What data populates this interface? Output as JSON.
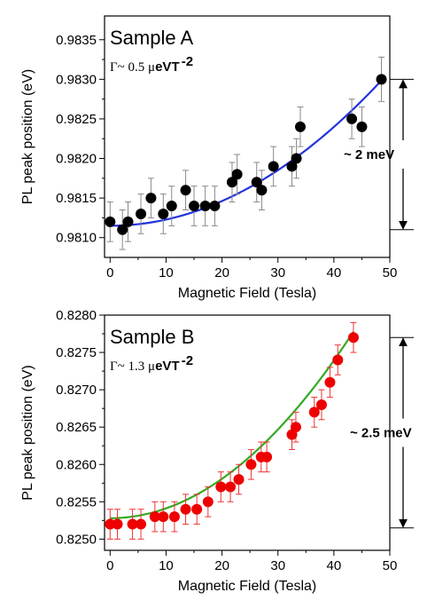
{
  "chart_data": [
    {
      "type": "scatter",
      "panel_label": "Sample A",
      "gamma_prefix": "Γ~ 0.5 μ",
      "gamma_unit": "eVT",
      "gamma_exp": "-2",
      "xlabel": "Magnetic Field (Tesla)",
      "ylabel": "PL peak position (eV)",
      "xlim": [
        -1,
        50
      ],
      "ylim": [
        0.98075,
        0.9838
      ],
      "x_ticks": [
        "0",
        "10",
        "20",
        "30",
        "40",
        "50"
      ],
      "x_tick_values": [
        0,
        10,
        20,
        30,
        40,
        50
      ],
      "y_ticks": [
        "0.9810",
        "0.9815",
        "0.9820",
        "0.9825",
        "0.9830",
        "0.9835"
      ],
      "y_tick_values": [
        0.981,
        0.9815,
        0.982,
        0.9825,
        0.983,
        0.9835
      ],
      "marker_color": "#000000",
      "errorbar_color": "#888888",
      "fit_color": "#2233dd",
      "fit": {
        "a": 0.98115,
        "c": 7.8e-07
      },
      "annotation": "~ 2 meV",
      "annotation_range": [
        0.9811,
        0.983
      ],
      "x": [
        0,
        2.2,
        3.2,
        5.5,
        7.3,
        9.5,
        11,
        13.5,
        15,
        17,
        18.7,
        21.8,
        22.7,
        26.2,
        27.1,
        29.2,
        32.5,
        33.3,
        34,
        43.2,
        45,
        48.5
      ],
      "y": [
        0.9812,
        0.9811,
        0.9812,
        0.9813,
        0.9815,
        0.9813,
        0.9814,
        0.9816,
        0.9814,
        0.9814,
        0.9814,
        0.9817,
        0.9818,
        0.9817,
        0.9816,
        0.9819,
        0.9819,
        0.982,
        0.9824,
        0.9825,
        0.9824,
        0.983
      ],
      "yerr": [
        0.00025,
        0.00025,
        0.00025,
        0.00025,
        0.00025,
        0.00025,
        0.00025,
        0.00025,
        0.00025,
        0.00025,
        0.00025,
        0.00025,
        0.00025,
        0.00025,
        0.00025,
        0.00025,
        0.00025,
        0.00025,
        0.00025,
        0.00025,
        0.00025,
        0.00028
      ]
    },
    {
      "type": "scatter",
      "panel_label": "Sample B",
      "gamma_prefix": "Γ~ 1.3 μ",
      "gamma_unit": "eVT",
      "gamma_exp": "-2",
      "xlabel": "Magnetic Field (Tesla)",
      "ylabel": "PL peak position (eV)",
      "xlim": [
        -1,
        50
      ],
      "ylim": [
        0.82485,
        0.828
      ],
      "x_ticks": [
        "0",
        "10",
        "20",
        "30",
        "40",
        "50"
      ],
      "x_tick_values": [
        0,
        10,
        20,
        30,
        40,
        50
      ],
      "y_ticks": [
        "0.8250",
        "0.8255",
        "0.8260",
        "0.8265",
        "0.8270",
        "0.8275",
        "0.8280"
      ],
      "y_tick_values": [
        0.825,
        0.8255,
        0.826,
        0.8265,
        0.827,
        0.8275,
        0.828
      ],
      "marker_color": "#ee0000",
      "errorbar_color": "#ee3333",
      "fit_color": "#33aa22",
      "fit": {
        "a": 0.82528,
        "c": 1.32e-06
      },
      "annotation": "~ 2.5 meV",
      "annotation_range": [
        0.82515,
        0.8277
      ],
      "x": [
        0,
        1.3,
        4,
        5.5,
        8,
        9.5,
        11.5,
        13.5,
        15.5,
        17.5,
        19.8,
        21.5,
        23,
        25.2,
        27,
        28,
        32.5,
        33.2,
        36.5,
        37.8,
        39.3,
        40.7,
        43.5
      ],
      "y": [
        0.8252,
        0.8252,
        0.8252,
        0.8252,
        0.8253,
        0.8253,
        0.8253,
        0.8254,
        0.8254,
        0.8255,
        0.8257,
        0.8257,
        0.8258,
        0.826,
        0.8261,
        0.8261,
        0.8264,
        0.8265,
        0.8267,
        0.8268,
        0.8271,
        0.8274,
        0.8277
      ],
      "yerr": [
        0.0002,
        0.0002,
        0.0002,
        0.0002,
        0.0002,
        0.0002,
        0.0002,
        0.0002,
        0.0002,
        0.0002,
        0.0002,
        0.0002,
        0.0002,
        0.0002,
        0.0002,
        0.0002,
        0.0002,
        0.0002,
        0.0002,
        0.0002,
        0.0002,
        0.0002,
        0.0002
      ]
    }
  ]
}
